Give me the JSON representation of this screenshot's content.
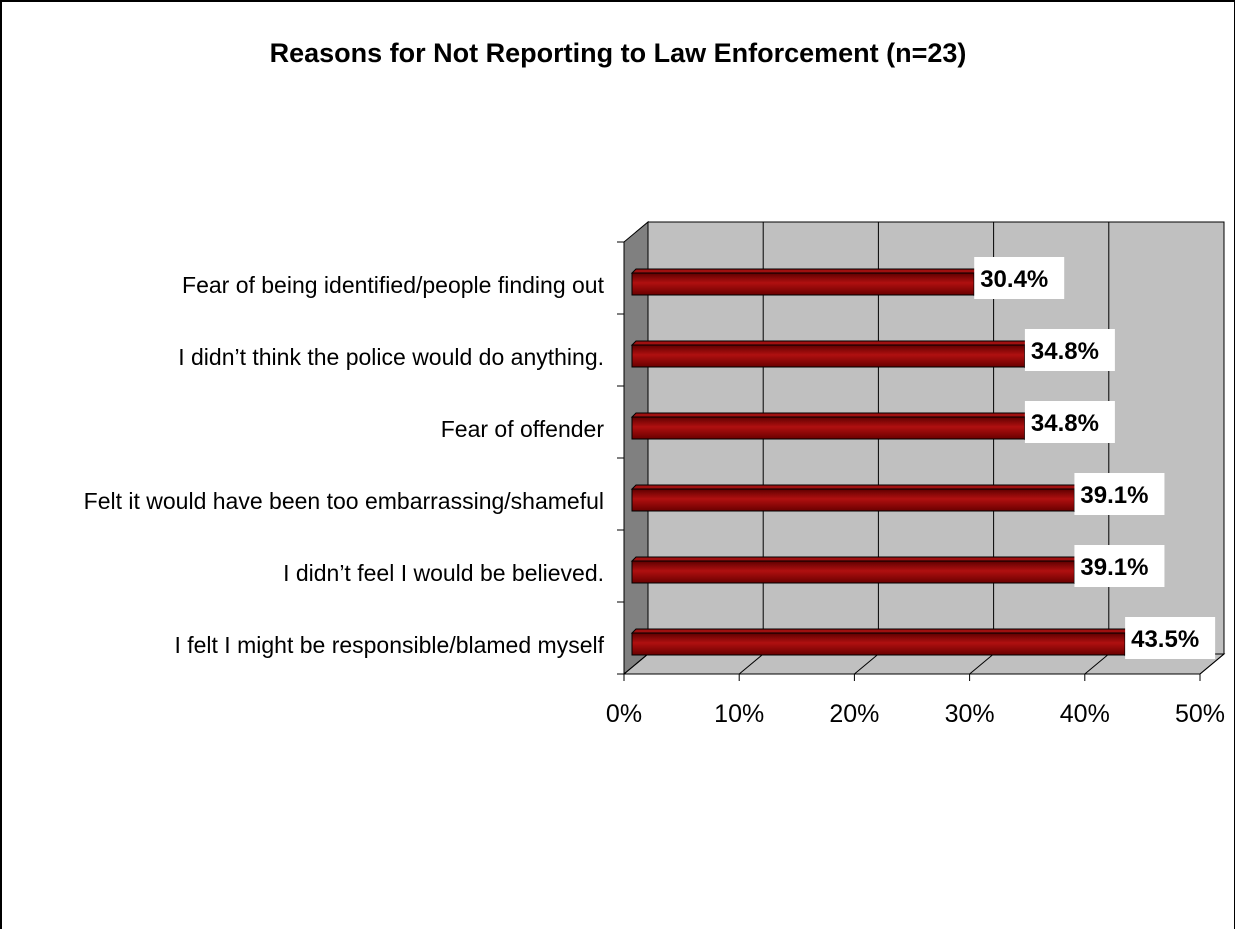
{
  "chart_data": {
    "type": "bar",
    "orientation": "horizontal",
    "title": "Reasons for Not Reporting to Law Enforcement (n=23)",
    "categories": [
      "Fear of being identified/people finding out",
      "I didn’t think the police would do anything.",
      "Fear of offender",
      "Felt it would have been too embarrassing/shameful",
      "I didn’t feel I would be believed.",
      "I felt I might be responsible/blamed myself"
    ],
    "values": [
      30.4,
      34.8,
      34.8,
      39.1,
      39.1,
      43.5
    ],
    "value_labels": [
      "30.4%",
      "34.8%",
      "34.8%",
      "39.1%",
      "39.1%",
      "43.5%"
    ],
    "xlim": [
      0,
      50
    ],
    "x_ticks": [
      0,
      10,
      20,
      30,
      40,
      50
    ],
    "x_tick_labels": [
      "0%",
      "10%",
      "20%",
      "30%",
      "40%",
      "50%"
    ],
    "xlabel": "",
    "ylabel": "",
    "grid": true,
    "legend": "none",
    "colors": {
      "bar": "#8b0000",
      "bar_highlight": "#b01010",
      "bar_outline": "#000000",
      "plot_wall": "#c0c0c0",
      "side_wall": "#808080",
      "floor": "#c0c0c0"
    }
  }
}
